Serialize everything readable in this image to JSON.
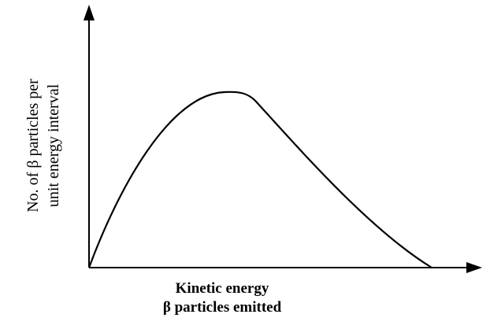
{
  "y_axis": {
    "label": [
      "No. of β particles per",
      "unit energy interval"
    ]
  },
  "x_axis": {
    "label": [
      "Kinetic energy",
      "β particles emitted"
    ]
  }
}
